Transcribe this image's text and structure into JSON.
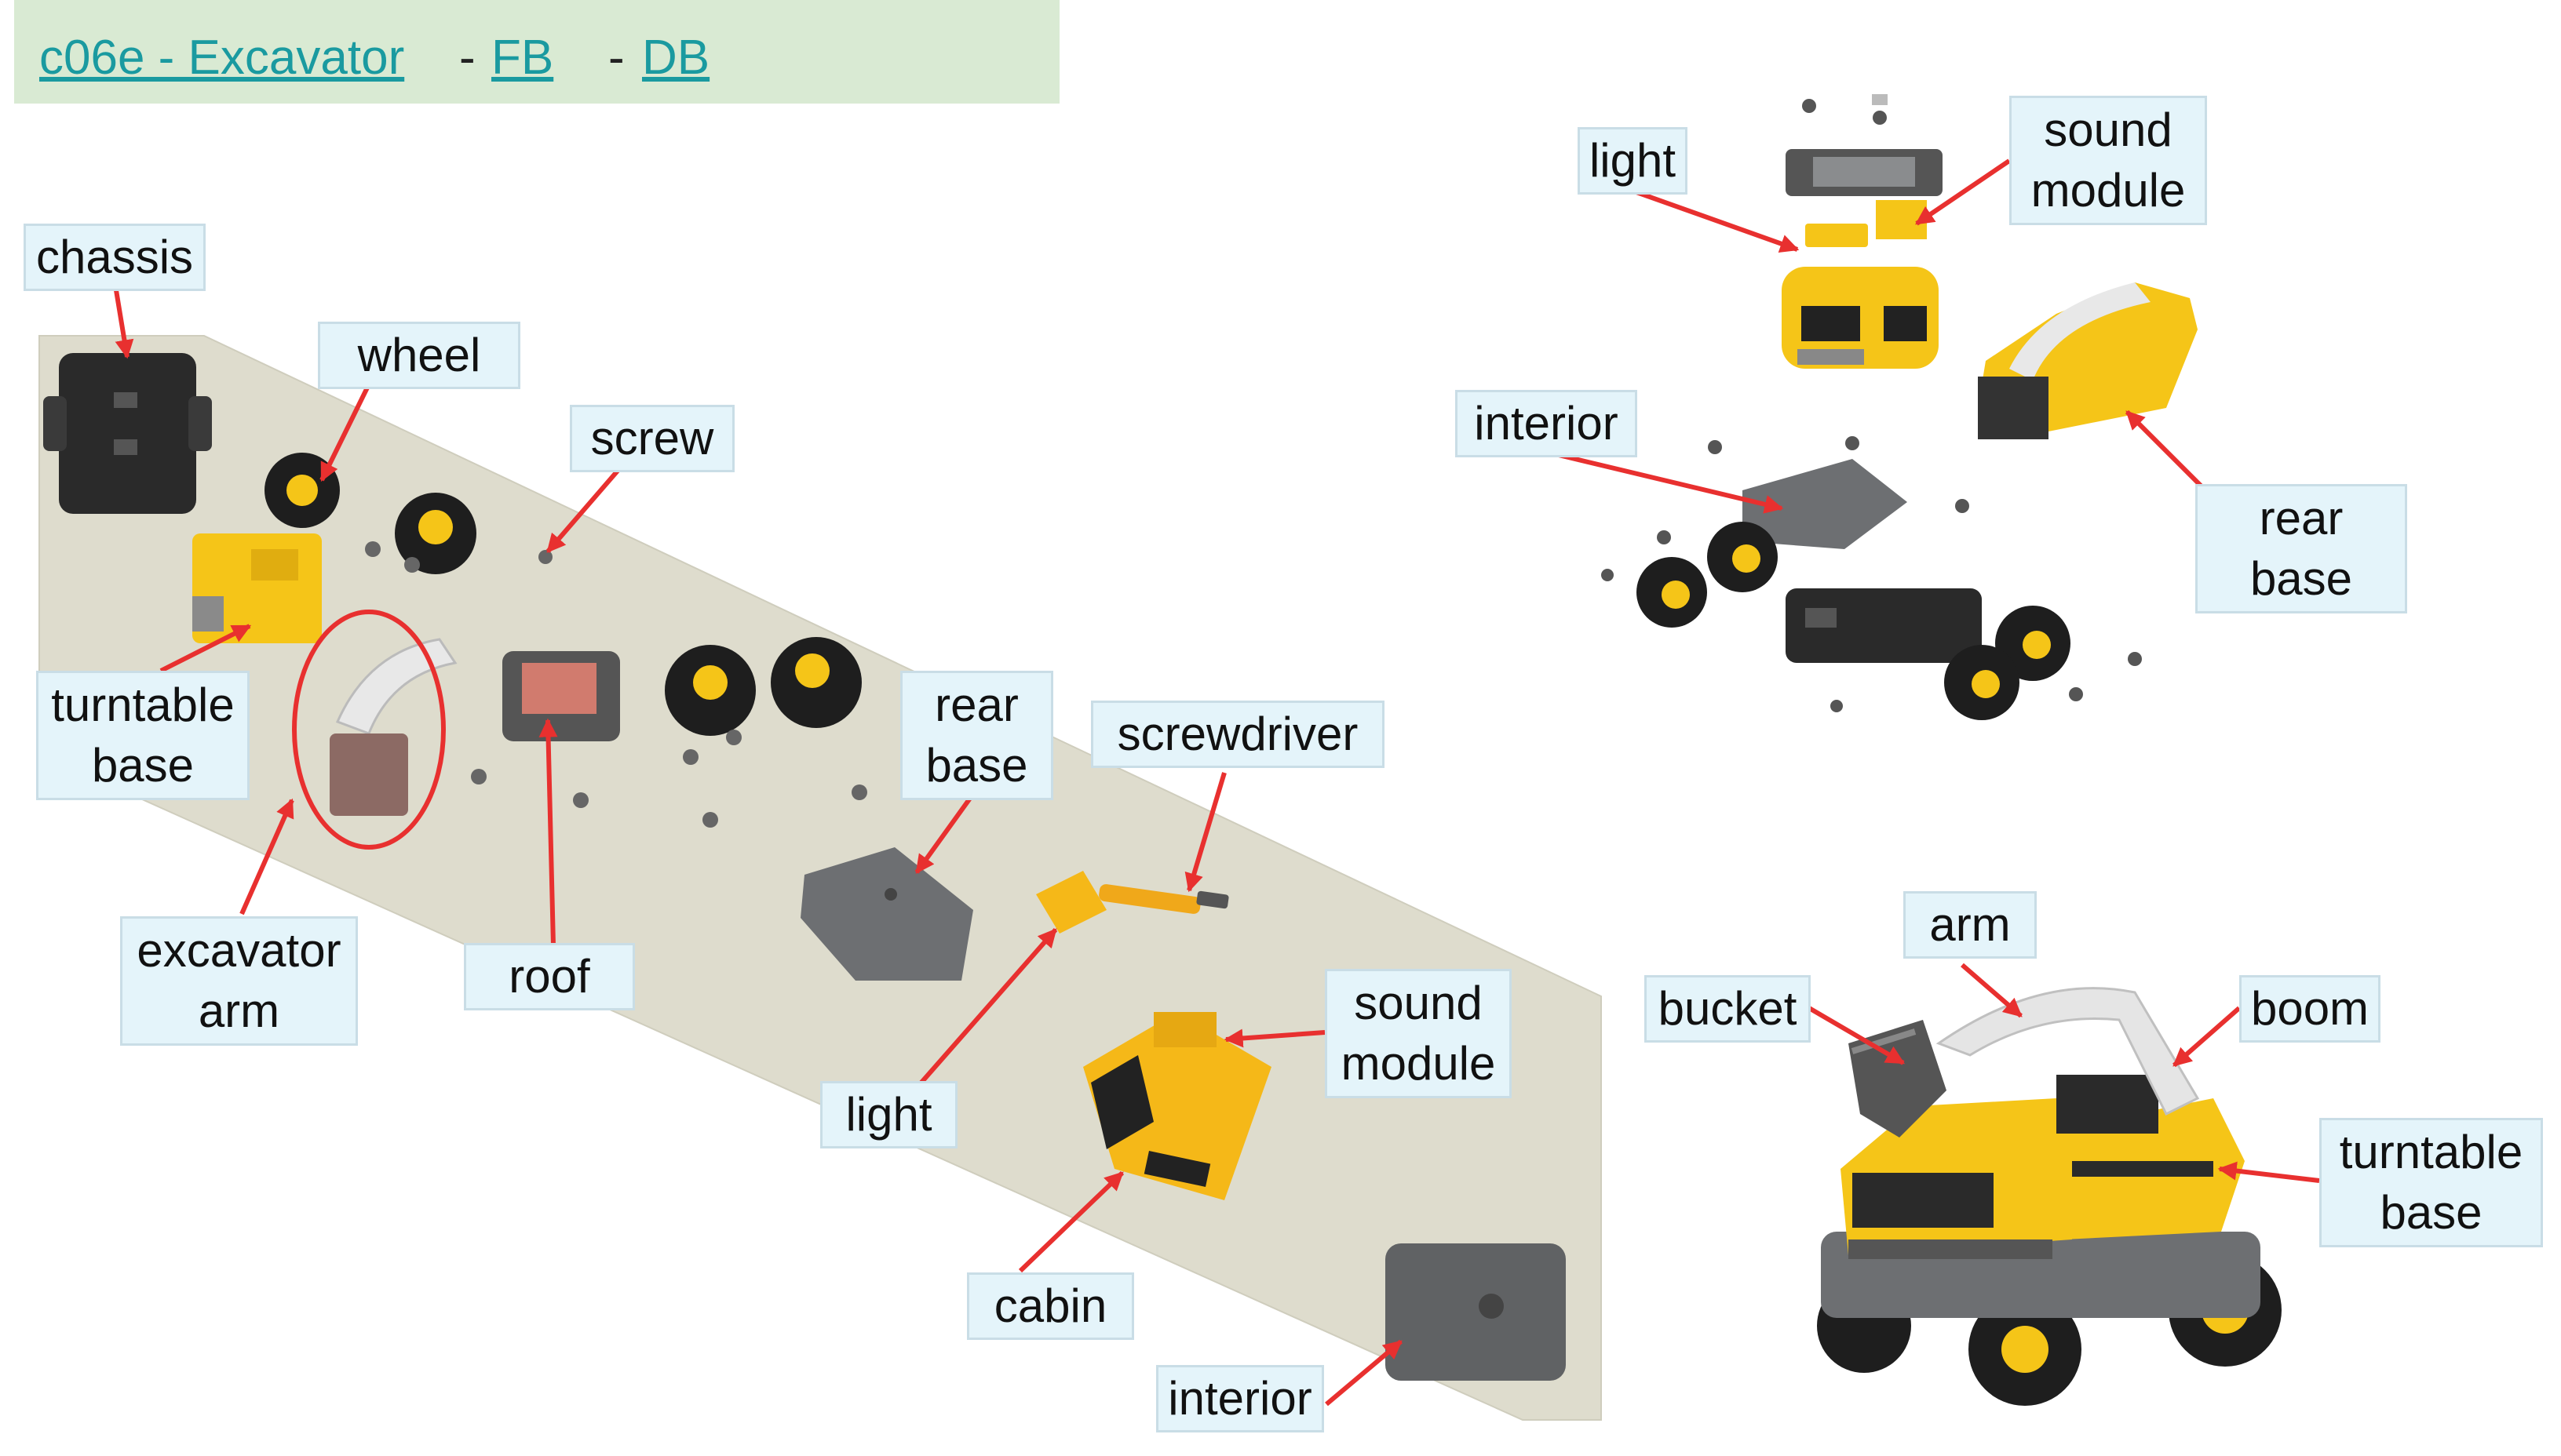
{
  "header": {
    "title_link": "c06e - Excavator",
    "sep1": "-",
    "fb_link": "FB",
    "sep2": "-",
    "db_link": "DB"
  },
  "photo_labels": {
    "chassis": "chassis",
    "wheel": "wheel",
    "screw": "screw",
    "turntable_base": "turntable\nbase",
    "rear_base": "rear\nbase",
    "screwdriver": "screwdriver",
    "excavator_arm": "excavator\narm",
    "roof": "roof",
    "light": "light",
    "sound_module": "sound\nmodule",
    "cabin": "cabin",
    "interior": "interior"
  },
  "exploded_labels": {
    "light": "light",
    "sound_module": "sound\nmodule",
    "interior": "interior",
    "rear_base": "rear\nbase"
  },
  "assembled_labels": {
    "arm": "arm",
    "bucket": "bucket",
    "boom": "boom",
    "turntable_base": "turntable\nbase"
  },
  "colors": {
    "header_bg": "#d9ead3",
    "link": "#1a9aa0",
    "label_bg": "#e4f4fa",
    "arrow": "#e8302f",
    "toy_yellow": "#f5c518",
    "toy_black": "#222222",
    "toy_gray": "#6d6f72"
  }
}
